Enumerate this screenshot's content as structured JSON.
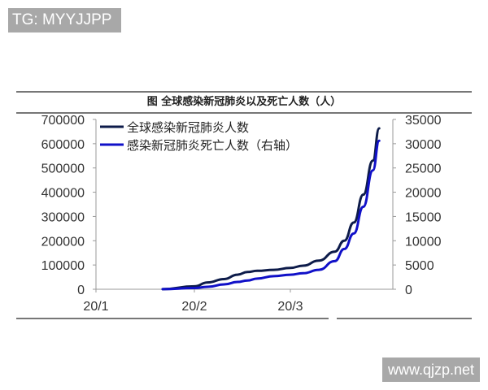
{
  "watermarks": {
    "top_left": "TG: MYYJJPP",
    "bottom_right": "www.qjzp.net"
  },
  "chart_data": {
    "type": "line",
    "title": "图 全球感染新冠肺炎以及死亡人数（人）",
    "xlabel": "",
    "ylabel": "",
    "x_tick_labels": [
      "20/1",
      "20/2",
      "20/3"
    ],
    "y_left": {
      "ticks": [
        0,
        100000,
        200000,
        300000,
        400000,
        500000,
        600000,
        700000
      ],
      "tick_labels": [
        "0",
        "100000",
        "200000",
        "300000",
        "400000",
        "500000",
        "600000",
        "700000"
      ],
      "ylim": [
        0,
        700000
      ]
    },
    "y_right": {
      "ticks": [
        0,
        5000,
        10000,
        15000,
        20000,
        25000,
        30000,
        35000
      ],
      "tick_labels": [
        "0",
        "5000",
        "10000",
        "15000",
        "20000",
        "25000",
        "30000",
        "35000"
      ],
      "ylim": [
        0,
        35000
      ]
    },
    "x": [
      "01-22",
      "02-01",
      "02-05",
      "02-10",
      "02-14",
      "02-17",
      "02-20",
      "02-25",
      "03-01",
      "03-05",
      "03-10",
      "03-15",
      "03-18",
      "03-21",
      "03-24",
      "03-27",
      "03-29"
    ],
    "series": [
      {
        "name": "全球感染新冠肺炎人数",
        "axis": "left",
        "color": "#0d1b4a",
        "values": [
          500,
          12000,
          28000,
          42000,
          60000,
          71000,
          76000,
          80000,
          88000,
          97000,
          118000,
          155000,
          200000,
          275000,
          390000,
          530000,
          663000
        ]
      },
      {
        "name": "感染新冠肺炎死亡人数（右轴）",
        "axis": "right",
        "color": "#1010c8",
        "values": [
          17,
          250,
          500,
          1000,
          1500,
          1800,
          2200,
          2700,
          2990,
          3300,
          4000,
          5800,
          8300,
          11500,
          17000,
          24500,
          30600
        ]
      }
    ],
    "legend": {
      "position": "upper-left",
      "entries": [
        "全球感染新冠肺炎人数",
        "感染新冠肺炎死亡人数（右轴）"
      ]
    },
    "grid": false
  }
}
